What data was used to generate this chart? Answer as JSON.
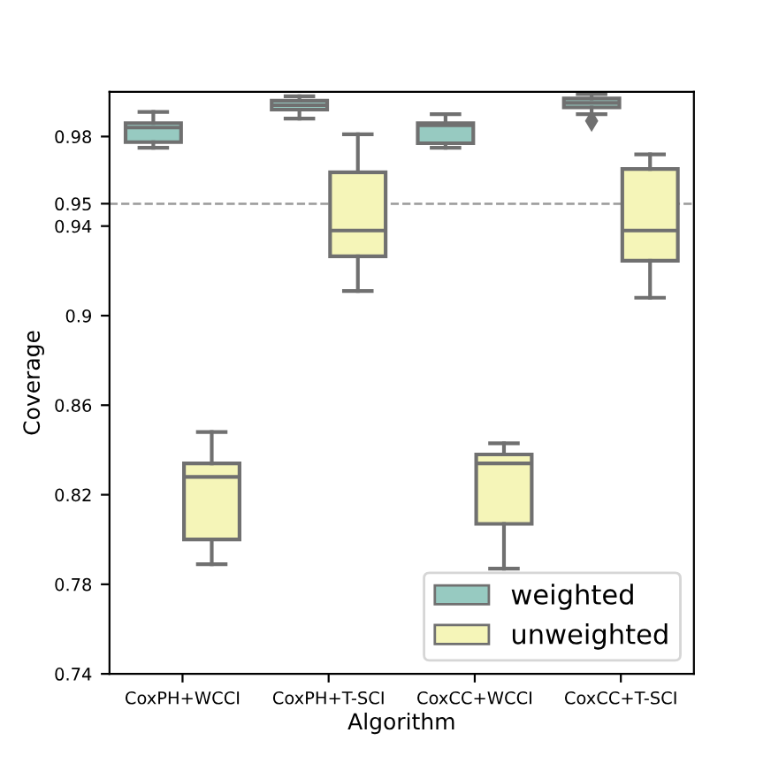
{
  "chart_data": {
    "type": "box",
    "xlabel": "Algorithm",
    "ylabel": "Coverage",
    "categories": [
      "CoxPH+WCCI",
      "CoxPH+T-SCI",
      "CoxCC+WCCI",
      "CoxCC+T-SCI"
    ],
    "series": [
      {
        "name": "weighted",
        "color": "#97cac1",
        "boxes": [
          {
            "low": 0.975,
            "q1": 0.9775,
            "median": 0.984,
            "q3": 0.986,
            "high": 0.991
          },
          {
            "low": 0.988,
            "q1": 0.992,
            "median": 0.994,
            "q3": 0.996,
            "high": 0.998
          },
          {
            "low": 0.975,
            "q1": 0.977,
            "median": 0.985,
            "q3": 0.986,
            "high": 0.99
          },
          {
            "low": 0.99,
            "q1": 0.993,
            "median": 0.995,
            "q3": 0.997,
            "high": 0.999,
            "outliers": [
              0.987
            ]
          }
        ]
      },
      {
        "name": "unweighted",
        "color": "#f5f5b8",
        "boxes": [
          {
            "low": 0.789,
            "q1": 0.8,
            "median": 0.828,
            "q3": 0.834,
            "high": 0.848
          },
          {
            "low": 0.911,
            "q1": 0.9265,
            "median": 0.938,
            "q3": 0.964,
            "high": 0.981
          },
          {
            "low": 0.787,
            "q1": 0.807,
            "median": 0.834,
            "q3": 0.838,
            "high": 0.843
          },
          {
            "low": 0.908,
            "q1": 0.9245,
            "median": 0.938,
            "q3": 0.9655,
            "high": 0.972
          }
        ]
      }
    ],
    "ylim": [
      0.74,
      1.0
    ],
    "yticks": [
      0.74,
      0.78,
      0.82,
      0.86,
      0.9,
      0.94,
      0.95,
      0.98
    ],
    "ref_lines": [
      {
        "axis": "y",
        "value": 0.95,
        "color": "#999999",
        "line_style": "dashed"
      }
    ],
    "legend": "bottom right",
    "grid": false
  }
}
